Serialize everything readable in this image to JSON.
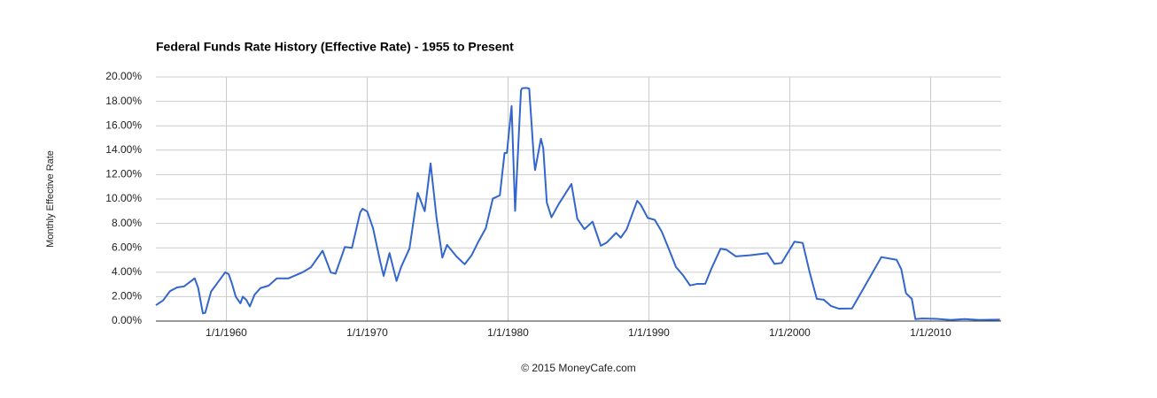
{
  "chart_data": {
    "type": "line",
    "title": "Federal Funds Rate History (Effective Rate) - 1955 to Present",
    "y_label": "Monthly Effective Rate",
    "footer": "© 2015 MoneyCafe.com",
    "x": [
      "1/1/1955",
      "7/1/1955",
      "1/1/1956",
      "7/1/1956",
      "1/1/1957",
      "10/1/1957",
      "1/1/1958",
      "5/1/1958",
      "7/1/1958",
      "12/1/1958",
      "6/1/1959",
      "12/1/1959",
      "3/1/1960",
      "6/1/1960",
      "9/1/1960",
      "1/1/1961",
      "3/1/1961",
      "6/1/1961",
      "9/1/1961",
      "1/1/1962",
      "6/1/1962",
      "1/1/1963",
      "8/1/1963",
      "6/1/1964",
      "6/1/1965",
      "1/1/1966",
      "11/1/1966",
      "6/1/1967",
      "10/1/1967",
      "6/1/1968",
      "12/1/1968",
      "7/1/1969",
      "9/1/1969",
      "1/1/1970",
      "6/1/1970",
      "12/1/1970",
      "3/1/1971",
      "8/1/1971",
      "2/1/1972",
      "6/1/1972",
      "1/1/1973",
      "8/1/1973",
      "10/1/1973",
      "2/1/1974",
      "7/1/1974",
      "12/1/1974",
      "5/1/1975",
      "9/1/1975",
      "5/1/1976",
      "12/1/1976",
      "6/1/1977",
      "12/1/1977",
      "6/1/1978",
      "12/1/1978",
      "6/1/1979",
      "10/1/1979",
      "12/1/1979",
      "4/1/1980",
      "7/1/1980",
      "12/1/1980",
      "1/1/1981",
      "5/1/1981",
      "7/1/1981",
      "11/1/1981",
      "12/1/1981",
      "5/1/1982",
      "7/1/1982",
      "10/1/1982",
      "2/1/1983",
      "8/1/1983",
      "7/1/1984",
      "12/1/1984",
      "6/1/1985",
      "1/1/1986",
      "8/1/1986",
      "1/1/1987",
      "9/1/1987",
      "1/1/1988",
      "6/1/1988",
      "3/1/1989",
      "6/1/1989",
      "12/1/1989",
      "6/1/1990",
      "12/1/1990",
      "6/1/1991",
      "12/1/1991",
      "6/1/1992",
      "12/1/1992",
      "6/1/1993",
      "1/1/1994",
      "6/1/1994",
      "2/1/1995",
      "7/1/1995",
      "3/1/1996",
      "3/1/1997",
      "6/1/1998",
      "12/1/1998",
      "6/1/1999",
      "5/1/2000",
      "12/1/2000",
      "6/1/2001",
      "12/1/2001",
      "6/1/2002",
      "12/1/2002",
      "7/1/2003",
      "6/1/2004",
      "6/1/2005",
      "7/1/2006",
      "8/1/2007",
      "12/1/2007",
      "4/1/2008",
      "9/1/2008",
      "12/1/2008",
      "6/1/2009",
      "6/1/2010",
      "6/1/2011",
      "6/1/2012",
      "6/1/2013",
      "12/1/2014"
    ],
    "series": [
      {
        "name": "Monthly Effective Rate",
        "color": "#3366cc",
        "values": [
          1.3,
          1.68,
          2.45,
          2.75,
          2.84,
          3.5,
          2.72,
          0.63,
          0.68,
          2.42,
          3.2,
          3.99,
          3.84,
          3.0,
          2.0,
          1.45,
          2.0,
          1.73,
          1.2,
          2.15,
          2.7,
          2.9,
          3.5,
          3.5,
          4.0,
          4.4,
          5.76,
          3.98,
          3.88,
          6.07,
          6.0,
          8.9,
          9.2,
          8.98,
          7.6,
          4.9,
          3.7,
          5.57,
          3.29,
          4.46,
          5.94,
          10.5,
          10.0,
          9.0,
          12.92,
          8.5,
          5.2,
          6.24,
          5.3,
          4.65,
          5.4,
          6.56,
          7.6,
          10.03,
          10.3,
          13.77,
          13.78,
          17.61,
          9.03,
          18.9,
          19.08,
          19.1,
          19.04,
          13.31,
          12.37,
          14.94,
          14.15,
          9.71,
          8.5,
          9.56,
          11.23,
          8.38,
          7.53,
          8.14,
          6.17,
          6.43,
          7.22,
          6.83,
          7.51,
          9.85,
          9.53,
          8.45,
          8.29,
          7.31,
          5.9,
          4.43,
          3.76,
          2.92,
          3.04,
          3.05,
          4.25,
          5.92,
          5.85,
          5.3,
          5.39,
          5.56,
          4.68,
          4.76,
          6.5,
          6.4,
          3.97,
          1.82,
          1.75,
          1.24,
          1.01,
          1.03,
          3.04,
          5.24,
          5.02,
          4.24,
          2.28,
          1.81,
          0.16,
          0.21,
          0.18,
          0.09,
          0.16,
          0.09,
          0.12
        ]
      }
    ],
    "xlim": [
      "1/1/1955",
      "1/1/2015"
    ],
    "xticks": [
      "1/1/1960",
      "1/1/1970",
      "1/1/1980",
      "1/1/1990",
      "1/1/2000",
      "1/1/2010"
    ],
    "ylim": [
      0,
      20
    ],
    "yticks": [
      {
        "value": 0,
        "label": "0.00%"
      },
      {
        "value": 2,
        "label": "2.00%"
      },
      {
        "value": 4,
        "label": "4.00%"
      },
      {
        "value": 6,
        "label": "6.00%"
      },
      {
        "value": 8,
        "label": "8.00%"
      },
      {
        "value": 10,
        "label": "10.00%"
      },
      {
        "value": 12,
        "label": "12.00%"
      },
      {
        "value": 14,
        "label": "14.00%"
      },
      {
        "value": 16,
        "label": "16.00%"
      },
      {
        "value": 18,
        "label": "18.00%"
      },
      {
        "value": 20,
        "label": "20.00%"
      }
    ],
    "grid": true
  }
}
